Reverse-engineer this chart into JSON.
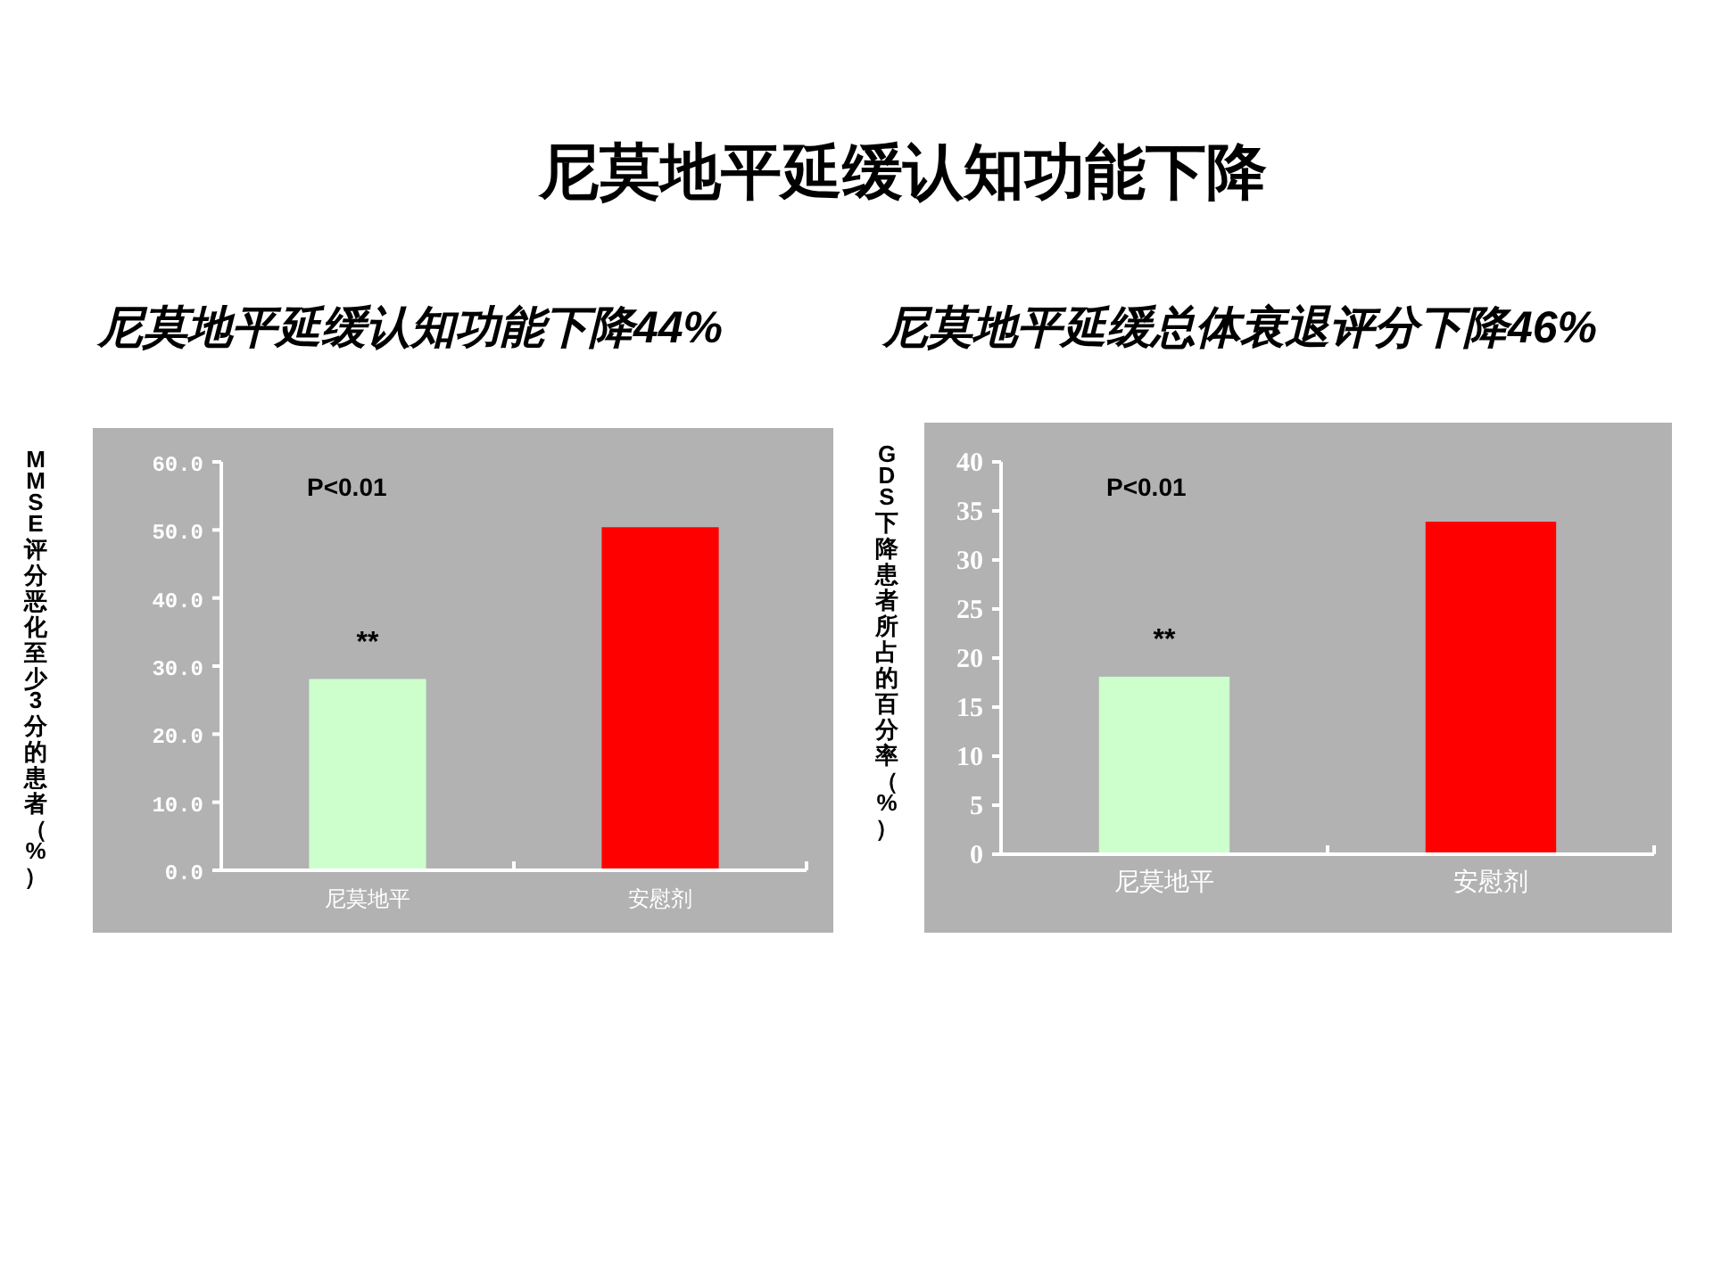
{
  "chart_data": [
    {
      "type": "bar",
      "title": "尼莫地平延缓认知功能下降44%",
      "ylabel": "MMSE评分恶化至少3分的患者（%）",
      "categories": [
        "尼莫地平",
        "安慰剂"
      ],
      "values": [
        28.1,
        50.4
      ],
      "colors": [
        "#ccffcc",
        "#ff0000"
      ],
      "ylim": [
        0,
        60
      ],
      "yticks": [
        {
          "value": 0,
          "label": "0.0"
        },
        {
          "value": 10,
          "label": "10.0"
        },
        {
          "value": 20,
          "label": "20.0"
        },
        {
          "value": 30,
          "label": "30.0"
        },
        {
          "value": 40,
          "label": "40.0"
        },
        {
          "value": 50,
          "label": "50.0"
        },
        {
          "value": 60,
          "label": "60.0"
        }
      ],
      "annotations": [
        "尼莫地平延缓认知功能下降",
        "P<0.01",
        "**"
      ]
    },
    {
      "type": "bar",
      "title": "尼莫地平延缓总体衰退评分下降46%",
      "ylabel": "GDS下降患者所占的百分率（%）",
      "categories": [
        "尼莫地平",
        "安慰剂"
      ],
      "values": [
        18.1,
        33.9
      ],
      "colors": [
        "#ccffcc",
        "#ff0000"
      ],
      "ylim": [
        0,
        40
      ],
      "yticks": [
        0,
        5,
        10,
        15,
        20,
        25,
        30,
        35,
        40
      ],
      "annotations": [
        "P<0.01",
        "**"
      ]
    }
  ]
}
